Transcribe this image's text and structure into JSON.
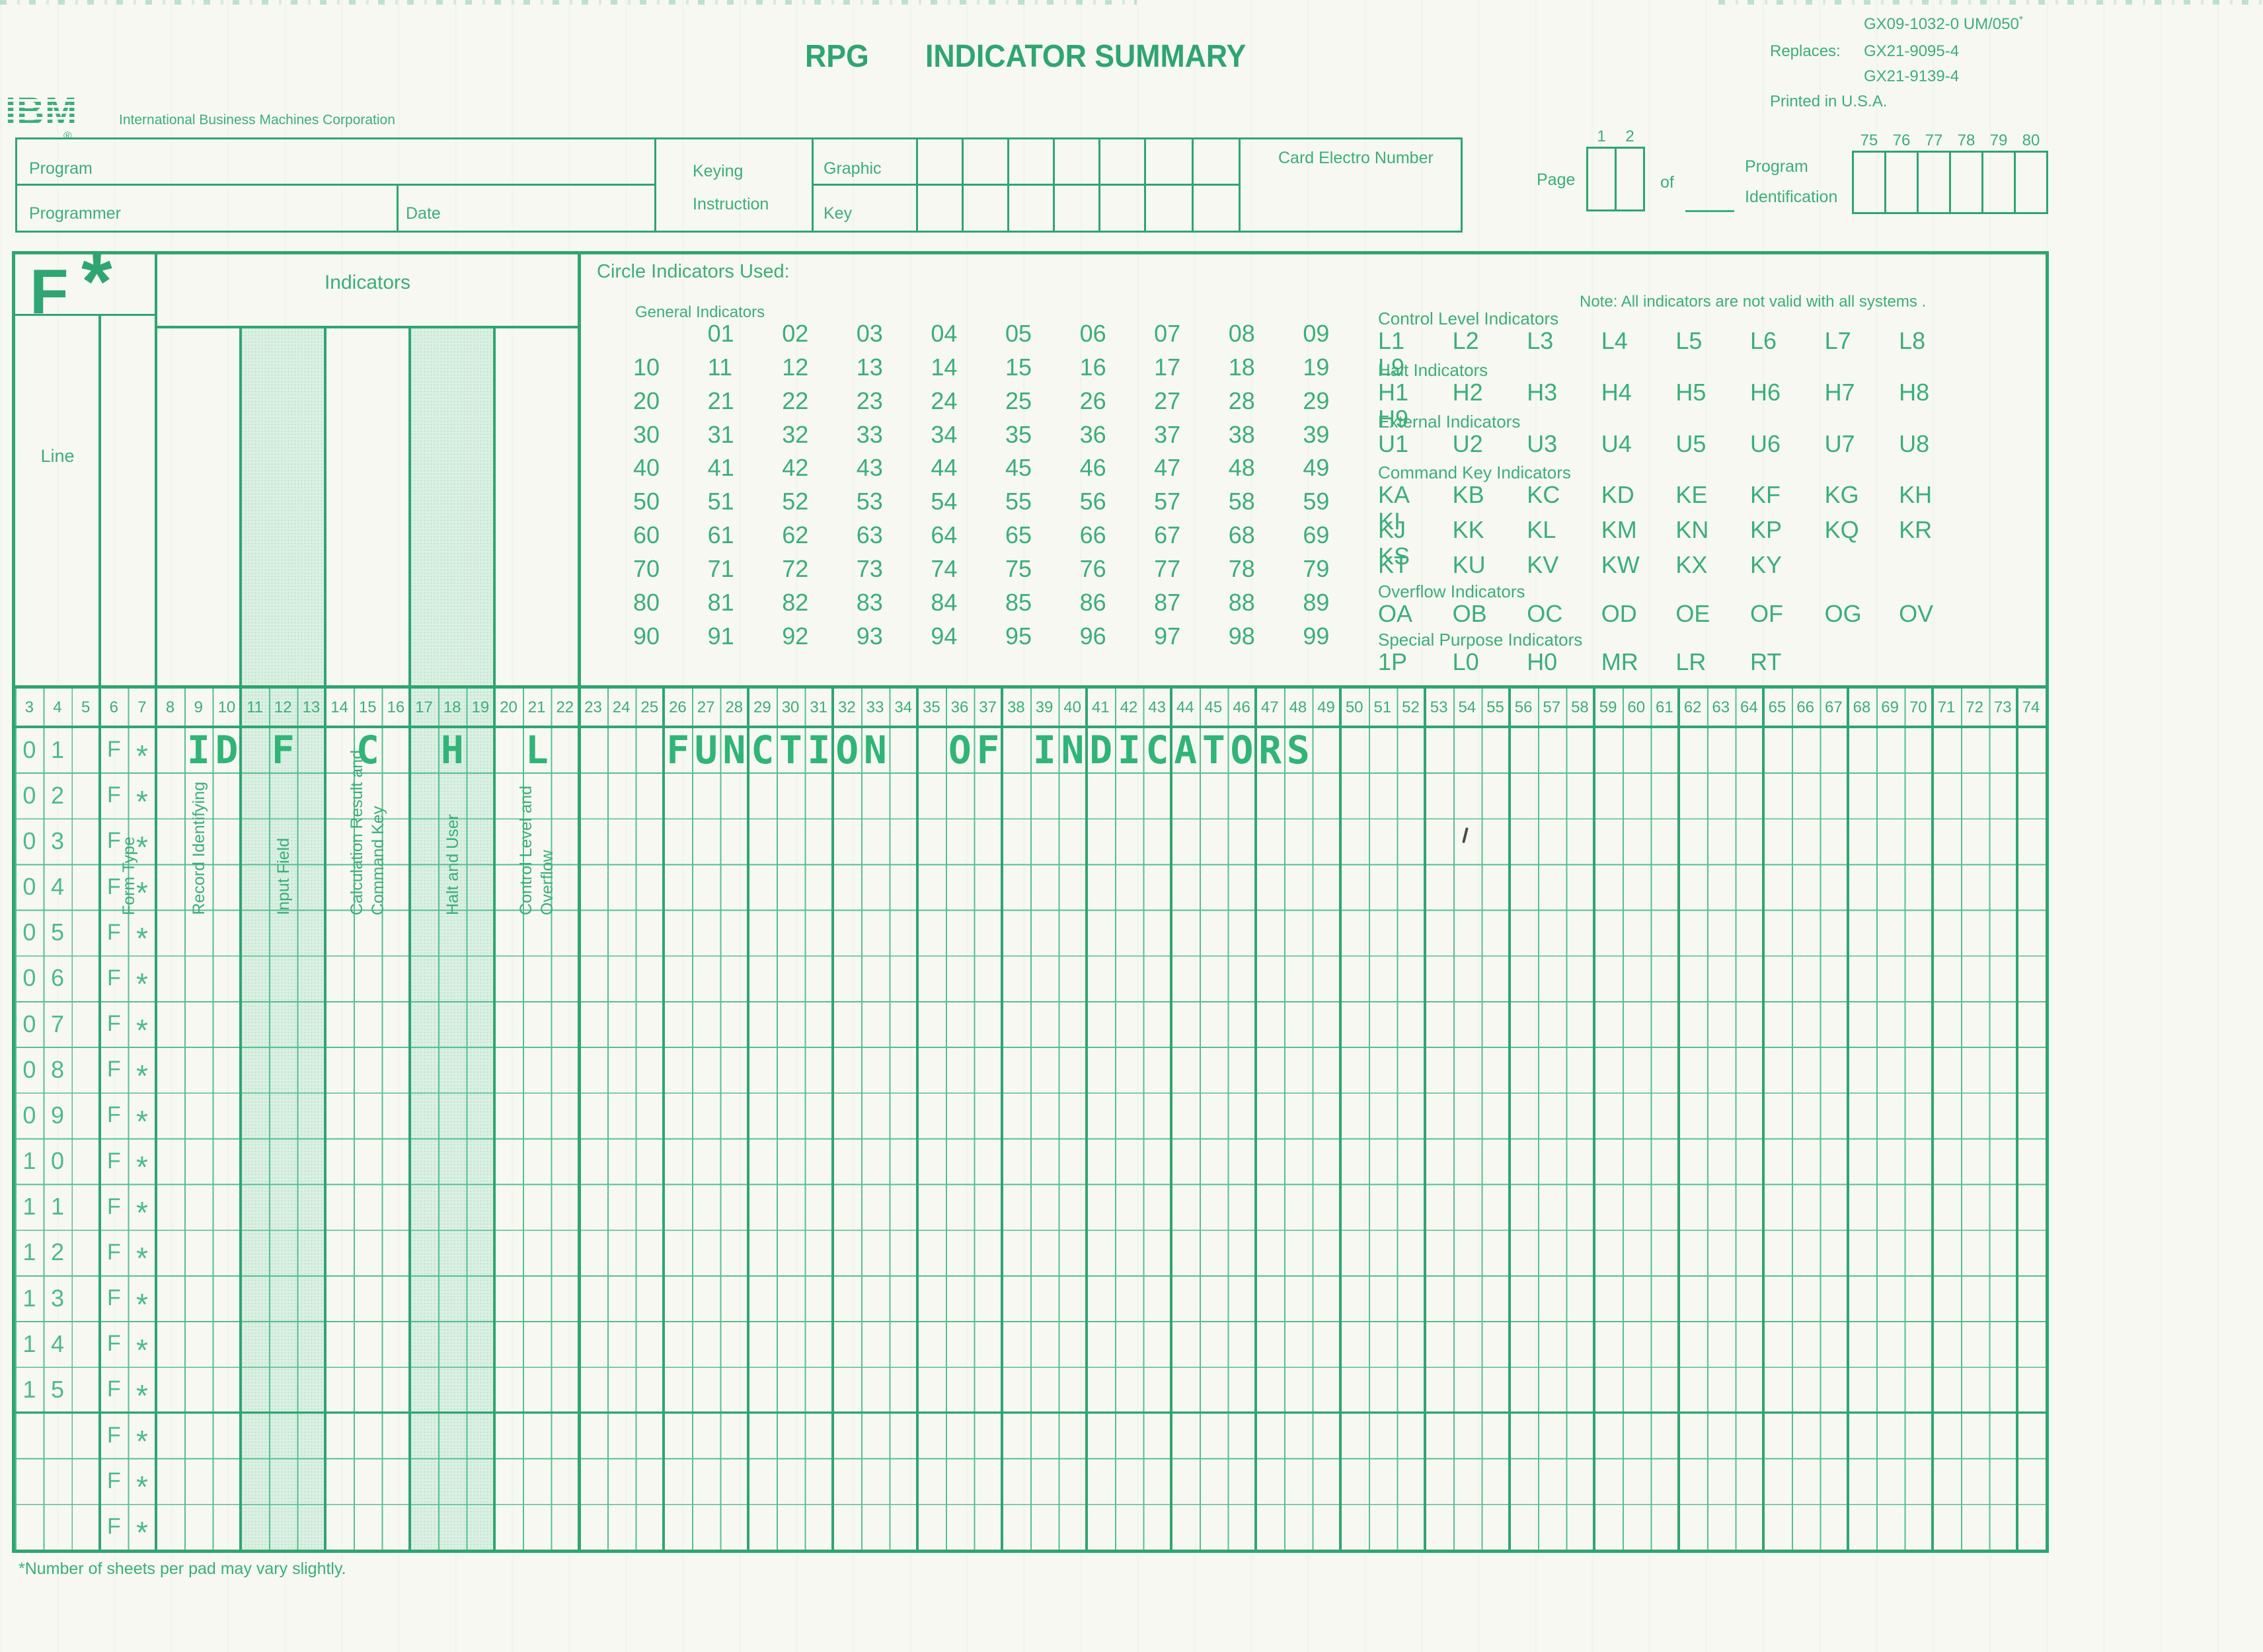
{
  "masthead": {
    "ibm_logo_text": "IBM",
    "ibm_reg_mark": "®",
    "ibm_subtitle": "International Business Machines Corporation",
    "title_word1": "RPG",
    "title_word2": "INDICATOR SUMMARY",
    "doc_number": "GX09-1032-0 UM/050",
    "doc_number_note_mark": "*",
    "replaces_label": "Replaces:",
    "replaces_numbers": [
      "GX21-9095-4",
      "GX21-9139-4"
    ],
    "printed_in": "Printed in U.S.A."
  },
  "header_fields": {
    "program": "Program",
    "programmer": "Programmer",
    "date": "Date",
    "keying_line1": "Keying",
    "keying_line2": "Instruction",
    "graphic": "Graphic",
    "key": "Key",
    "card_electro": "Card Electro Number",
    "page_label": "Page",
    "of_label": "of",
    "page_col_numbers": [
      "1",
      "2"
    ],
    "program_id_line1": "Program",
    "program_id_line2": "Identification",
    "program_id_col_numbers": [
      "75",
      "76",
      "77",
      "78",
      "79",
      "80"
    ]
  },
  "form": {
    "type_letter": "F",
    "type_mark": "*",
    "line_label": "Line",
    "form_type_label": "Form Type",
    "indicators_label": "Indicators",
    "column_labels": {
      "record": "Record Identifying",
      "input": "Input Field",
      "calc": "Calculation Result and\nCommand Key",
      "halt": "Halt and User",
      "control": "Control Level and\nOverflow"
    },
    "circle_title": "Circle Indicators Used:",
    "note": "Note: All indicators are not valid with all systems .",
    "general_title": "General Indicators",
    "general_cells": [
      "",
      "01",
      "02",
      "03",
      "04",
      "05",
      "06",
      "07",
      "08",
      "09",
      "10",
      "11",
      "12",
      "13",
      "14",
      "15",
      "16",
      "17",
      "18",
      "19",
      "20",
      "21",
      "22",
      "23",
      "24",
      "25",
      "26",
      "27",
      "28",
      "29",
      "30",
      "31",
      "32",
      "33",
      "34",
      "35",
      "36",
      "37",
      "38",
      "39",
      "40",
      "41",
      "42",
      "43",
      "44",
      "45",
      "46",
      "47",
      "48",
      "49",
      "50",
      "51",
      "52",
      "53",
      "54",
      "55",
      "56",
      "57",
      "58",
      "59",
      "60",
      "61",
      "62",
      "63",
      "64",
      "65",
      "66",
      "67",
      "68",
      "69",
      "70",
      "71",
      "72",
      "73",
      "74",
      "75",
      "76",
      "77",
      "78",
      "79",
      "80",
      "81",
      "82",
      "83",
      "84",
      "85",
      "86",
      "87",
      "88",
      "89",
      "90",
      "91",
      "92",
      "93",
      "94",
      "95",
      "96",
      "97",
      "98",
      "99"
    ],
    "sections": [
      {
        "title": "Control Level Indicators",
        "rows": [
          [
            "L1",
            "L2",
            "L3",
            "L4",
            "L5",
            "L6",
            "L7",
            "L8",
            "L9"
          ]
        ]
      },
      {
        "title": "Halt Indicators",
        "rows": [
          [
            "H1",
            "H2",
            "H3",
            "H4",
            "H5",
            "H6",
            "H7",
            "H8",
            "H9"
          ]
        ]
      },
      {
        "title": "External Indicators",
        "rows": [
          [
            "U1",
            "U2",
            "U3",
            "U4",
            "U5",
            "U6",
            "U7",
            "U8"
          ]
        ]
      },
      {
        "title": "Command Key Indicators",
        "rows": [
          [
            "KA",
            "KB",
            "KC",
            "KD",
            "KE",
            "KF",
            "KG",
            "KH",
            "KI"
          ],
          [
            "KJ",
            "KK",
            "KL",
            "KM",
            "KN",
            "KP",
            "KQ",
            "KR",
            "KS"
          ],
          [
            "KT",
            "KU",
            "KV",
            "KW",
            "KX",
            "KY"
          ]
        ]
      },
      {
        "title": "Overflow Indicators",
        "rows": [
          [
            "OA",
            "OB",
            "OC",
            "OD",
            "OE",
            "OF",
            "OG",
            "OV"
          ]
        ]
      },
      {
        "title": "Special Purpose Indicators",
        "rows": [
          [
            "1P",
            "L0",
            "H0",
            "MR",
            "LR",
            "RT"
          ]
        ]
      }
    ]
  },
  "grid": {
    "ruler": [
      "3",
      "4",
      "5",
      "6",
      "7",
      "8",
      "9",
      "10",
      "11",
      "12",
      "13",
      "14",
      "15",
      "16",
      "17",
      "18",
      "19",
      "20",
      "21",
      "22",
      "23",
      "24",
      "25",
      "26",
      "27",
      "28",
      "29",
      "30",
      "31",
      "32",
      "33",
      "34",
      "35",
      "36",
      "37",
      "38",
      "39",
      "40",
      "41",
      "42",
      "43",
      "44",
      "45",
      "46",
      "47",
      "48",
      "49",
      "50",
      "51",
      "52",
      "53",
      "54",
      "55",
      "56",
      "57",
      "58",
      "59",
      "60",
      "61",
      "62",
      "63",
      "64",
      "65",
      "66",
      "67",
      "68",
      "69",
      "70",
      "71",
      "72",
      "73",
      "74"
    ],
    "line_numbers": [
      "01",
      "02",
      "03",
      "04",
      "05",
      "06",
      "07",
      "08",
      "09",
      "10",
      "11",
      "12",
      "13",
      "14",
      "15",
      "",
      "",
      ""
    ],
    "form_type": "F",
    "comment_mark": "*",
    "stamped": [
      {
        "col": 9,
        "text": "ID"
      },
      {
        "col": 12,
        "text": "F"
      },
      {
        "col": 15,
        "text": "C"
      },
      {
        "col": 18,
        "text": "H"
      },
      {
        "col": 21,
        "text": "L"
      },
      {
        "col": 26,
        "text": "FUNCTION"
      },
      {
        "col": 36,
        "text": "OF"
      },
      {
        "col": 39,
        "text": "INDICATORS"
      }
    ]
  },
  "footer": {
    "note": "*Number of sheets per pad may vary slightly."
  },
  "colors": {
    "ink_green": "#3bae7a",
    "stamp_green": "#30b478",
    "shade_green": "#dbf0e3",
    "paper": "#f7f8f1"
  }
}
